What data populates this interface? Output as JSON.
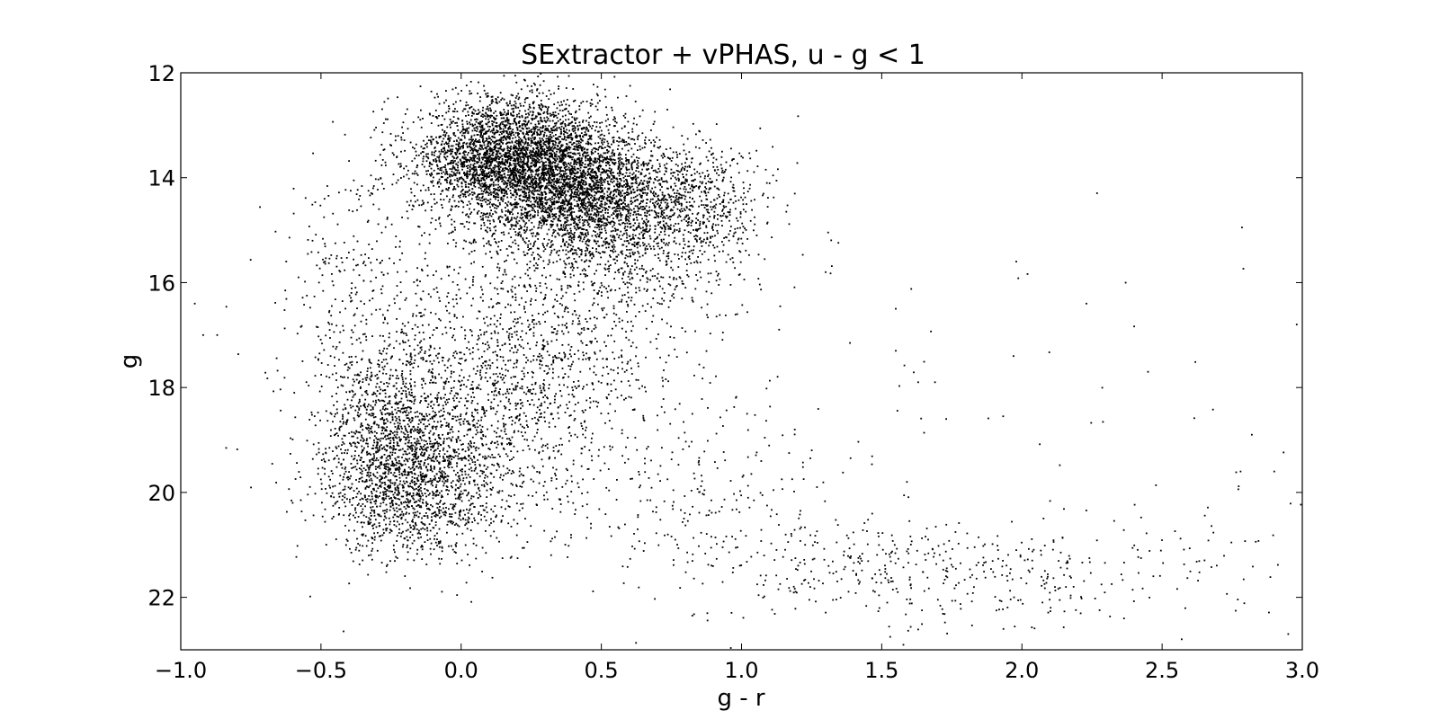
{
  "chart_data": {
    "type": "scatter",
    "title": "SExtractor + vPHAS, u - g < 1",
    "xlabel": "g - r",
    "ylabel": "g",
    "xlim": [
      -1.0,
      3.0
    ],
    "ylim": [
      23,
      12
    ],
    "y_inverted": true,
    "grid": false,
    "marker_color": "#000000",
    "x_ticks": [
      -1.0,
      -0.5,
      0.0,
      0.5,
      1.0,
      1.5,
      2.0,
      2.5,
      3.0
    ],
    "x_tick_labels": [
      "−1.0",
      "−0.5",
      "0.0",
      "0.5",
      "1.0",
      "1.5",
      "2.0",
      "2.5",
      "3.0"
    ],
    "y_ticks": [
      12,
      14,
      16,
      18,
      20,
      22
    ],
    "y_tick_labels": [
      "12",
      "14",
      "16",
      "18",
      "20",
      "22"
    ],
    "point_clusters": [
      {
        "count": 2600,
        "center": [
          0.33,
          13.9
        ],
        "spread": [
          0.2,
          0.55
        ]
      },
      {
        "count": 1400,
        "center": [
          0.12,
          13.6
        ],
        "spread": [
          0.16,
          0.45
        ]
      },
      {
        "count": 450,
        "center": [
          0.22,
          12.95
        ],
        "spread": [
          0.14,
          0.35
        ]
      },
      {
        "count": 1300,
        "center": [
          0.45,
          14.6
        ],
        "spread": [
          0.2,
          0.55
        ]
      },
      {
        "count": 650,
        "center": [
          0.62,
          15.3
        ],
        "spread": [
          0.22,
          0.75
        ]
      },
      {
        "count": 400,
        "center": [
          0.85,
          14.4
        ],
        "spread": [
          0.13,
          0.55
        ]
      },
      {
        "count": 1200,
        "center": [
          -0.12,
          19.4
        ],
        "spread": [
          0.17,
          0.85
        ]
      },
      {
        "count": 700,
        "center": [
          -0.28,
          18.8
        ],
        "spread": [
          0.12,
          1.0
        ]
      },
      {
        "count": 500,
        "center": [
          -0.18,
          20.1
        ],
        "spread": [
          0.14,
          0.55
        ]
      },
      {
        "count": 900,
        "center": [
          0.1,
          17.3
        ],
        "spread": [
          0.3,
          1.3
        ]
      },
      {
        "count": 500,
        "center": [
          0.35,
          17.6
        ],
        "spread": [
          0.22,
          1.2
        ]
      },
      {
        "count": 250,
        "center": [
          0.2,
          19.2
        ],
        "spread": [
          0.28,
          1.0
        ]
      },
      {
        "count": 150,
        "center": [
          -0.4,
          15.5
        ],
        "spread": [
          0.1,
          0.9
        ]
      },
      {
        "count": 200,
        "center": [
          0.9,
          20.2
        ],
        "spread": [
          0.22,
          1.0
        ]
      },
      {
        "count": 220,
        "center": [
          1.45,
          21.4
        ],
        "spread": [
          0.3,
          0.45
        ]
      },
      {
        "count": 140,
        "center": [
          1.9,
          21.7
        ],
        "spread": [
          0.3,
          0.5
        ]
      },
      {
        "count": 90,
        "center": [
          2.45,
          21.3
        ],
        "spread": [
          0.32,
          0.55
        ]
      },
      {
        "count": 60,
        "center": [
          1.95,
          19.5
        ],
        "spread": [
          0.55,
          2.2
        ]
      }
    ],
    "isolated_points": [
      [
        -0.95,
        16.4
      ],
      [
        -0.92,
        17.0
      ],
      [
        -0.87,
        17.0
      ],
      [
        -0.58,
        15.9
      ],
      [
        -0.53,
        15.2
      ],
      [
        1.3,
        15.8
      ],
      [
        1.98,
        15.6
      ],
      [
        2.37,
        16.0
      ],
      [
        2.23,
        16.4
      ],
      [
        2.45,
        17.7
      ],
      [
        2.98,
        16.8
      ],
      [
        2.82,
        18.9
      ],
      [
        2.78,
        19.6
      ],
      [
        2.9,
        19.6
      ],
      [
        2.57,
        22.8
      ],
      [
        2.95,
        22.7
      ],
      [
        1.59,
        19.8
      ],
      [
        1.97,
        17.4
      ],
      [
        1.73,
        18.6
      ],
      [
        1.55,
        16.5
      ],
      [
        1.55,
        17.3
      ],
      [
        1.63,
        17.9
      ],
      [
        1.69,
        17.9
      ],
      [
        1.19,
        18.8
      ],
      [
        1.02,
        18.5
      ]
    ]
  }
}
